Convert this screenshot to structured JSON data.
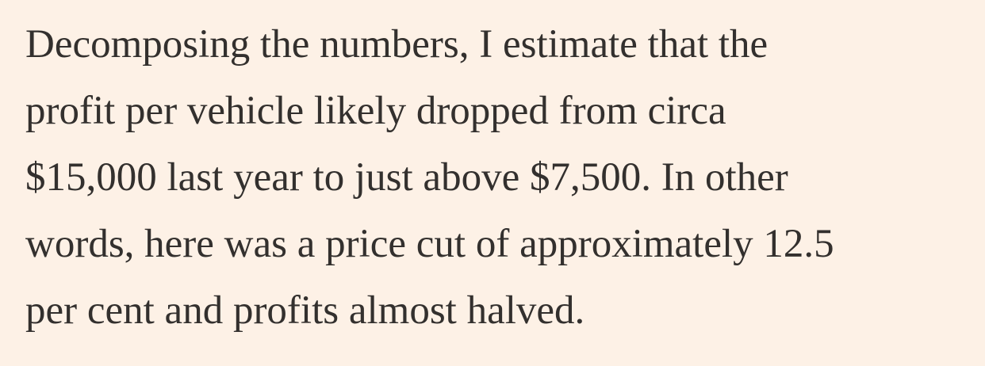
{
  "article": {
    "paragraph_lines": [
      "Decomposing the numbers, I estimate that the",
      "profit per vehicle likely dropped from circa",
      "$15,000 last year to just above $7,500. In other",
      "words, here was a price cut of approximately 12.5",
      "per cent and profits almost halved."
    ]
  },
  "colors": {
    "background": "#FDF1E6",
    "text": "#33302E"
  }
}
